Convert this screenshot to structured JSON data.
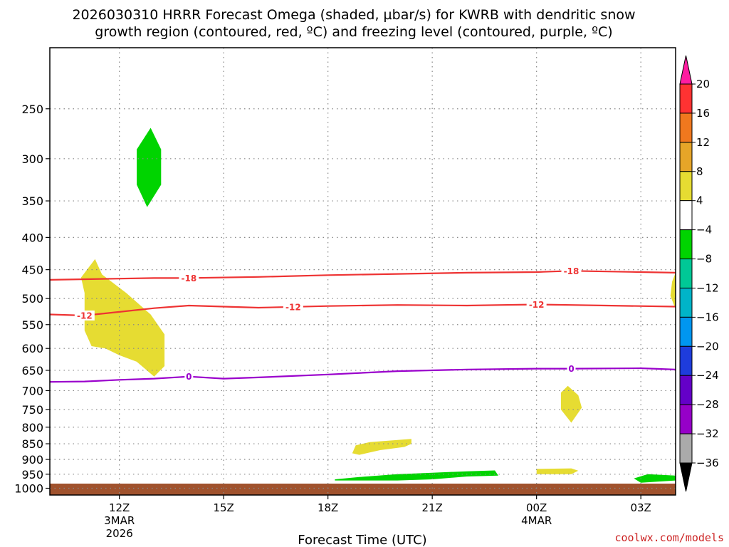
{
  "title": {
    "line1": "2026030310 HRRR Forecast Omega (shaded, µbar/s) for KWRB with dendritic snow",
    "line2": "growth region (contoured, red, ºC) and freezing level (contoured, purple, ºC)"
  },
  "credit": "coolwx.com/models",
  "colors": {
    "ascent_weak": "#00d400",
    "descent_weak": "#e6dc32",
    "ground": "#a0522d",
    "dgz_contour": "#ee3333",
    "freezing_contour": "#9a00cc",
    "grid": "#888888"
  },
  "chart_data": {
    "type": "time-height cross section",
    "xlabel": "Forecast Time (UTC)",
    "ylabel": "",
    "x_unit": "hours since 2026-03-03 08Z",
    "x_ticks": [
      {
        "x": 4,
        "label": "12Z",
        "sub": [
          "3MAR",
          "2026"
        ]
      },
      {
        "x": 7,
        "label": "15Z",
        "sub": []
      },
      {
        "x": 10,
        "label": "18Z",
        "sub": []
      },
      {
        "x": 13,
        "label": "21Z",
        "sub": []
      },
      {
        "x": 16,
        "label": "00Z",
        "sub": [
          "4MAR"
        ]
      },
      {
        "x": 19,
        "label": "03Z",
        "sub": []
      }
    ],
    "xlim": [
      2,
      20
    ],
    "y_unit": "hPa",
    "y_ticks": [
      250,
      300,
      350,
      400,
      450,
      500,
      550,
      600,
      650,
      700,
      750,
      800,
      850,
      900,
      950,
      1000
    ],
    "ylim": [
      200,
      1025
    ],
    "grid": true,
    "colorbar": {
      "labels": [
        20,
        16,
        12,
        8,
        4,
        -4,
        -8,
        -12,
        -16,
        -20,
        -24,
        -28,
        -32,
        -36
      ],
      "colors": [
        "#ff1ca0",
        "#ff3232",
        "#f0781e",
        "#e6a528",
        "#e6dc32",
        "#ffffff",
        "#00d400",
        "#00c896",
        "#00b4c8",
        "#0096f0",
        "#1e3cdc",
        "#6400c8",
        "#9600c8",
        "#aaaaaa",
        "#000000"
      ]
    },
    "contours": [
      {
        "name": "dgz_-18",
        "level": -18,
        "label": "-18",
        "color": "red",
        "points": [
          [
            2,
            467
          ],
          [
            4,
            465
          ],
          [
            5,
            464
          ],
          [
            6,
            464
          ],
          [
            8,
            462
          ],
          [
            10,
            459
          ],
          [
            12,
            457
          ],
          [
            14,
            455
          ],
          [
            16,
            454
          ],
          [
            17,
            452
          ],
          [
            19,
            454
          ],
          [
            20,
            455
          ]
        ],
        "label_x": [
          6,
          17
        ]
      },
      {
        "name": "dgz_-12",
        "level": -12,
        "label": "-12",
        "color": "red",
        "points": [
          [
            2,
            530
          ],
          [
            3,
            532
          ],
          [
            4,
            525
          ],
          [
            5,
            518
          ],
          [
            6,
            513
          ],
          [
            7,
            515
          ],
          [
            8,
            517
          ],
          [
            10,
            514
          ],
          [
            12,
            512
          ],
          [
            14,
            513
          ],
          [
            15,
            512
          ],
          [
            16,
            511
          ],
          [
            17,
            512
          ],
          [
            18,
            513
          ],
          [
            20,
            515
          ]
        ],
        "label_x": [
          3,
          9,
          16
        ]
      },
      {
        "name": "freezing_0",
        "level": 0,
        "label": "0",
        "color": "purple",
        "points": [
          [
            2,
            678
          ],
          [
            3,
            677
          ],
          [
            4,
            673
          ],
          [
            5,
            670
          ],
          [
            6,
            665
          ],
          [
            7,
            670
          ],
          [
            8,
            667
          ],
          [
            10,
            660
          ],
          [
            12,
            652
          ],
          [
            14,
            648
          ],
          [
            16,
            646
          ],
          [
            17,
            646
          ],
          [
            19,
            645
          ],
          [
            20,
            648
          ]
        ],
        "label_x": [
          6,
          17
        ]
      }
    ],
    "shaded_regions": [
      {
        "name": "ascent_upper",
        "value": "-8 to -4",
        "color_key": "ascent_weak",
        "polygon": [
          [
            4.5,
            290
          ],
          [
            4.9,
            268
          ],
          [
            5.2,
            290
          ],
          [
            5.2,
            330
          ],
          [
            4.8,
            358
          ],
          [
            4.5,
            330
          ]
        ]
      },
      {
        "name": "descent_midlevel",
        "value": "4 to 8",
        "color_key": "descent_weak",
        "polygon": [
          [
            2.9,
            463
          ],
          [
            3.0,
            490
          ],
          [
            3.0,
            562
          ],
          [
            3.2,
            595
          ],
          [
            3.6,
            600
          ],
          [
            4.0,
            615
          ],
          [
            4.5,
            630
          ],
          [
            5.0,
            665
          ],
          [
            5.3,
            640
          ],
          [
            5.3,
            570
          ],
          [
            4.9,
            530
          ],
          [
            4.2,
            490
          ],
          [
            3.5,
            458
          ],
          [
            3.3,
            433
          ]
        ]
      },
      {
        "name": "descent_right_edge",
        "value": "4 to 8",
        "color_key": "descent_weak",
        "polygon": [
          [
            19.9,
            470
          ],
          [
            20,
            455
          ],
          [
            20,
            520
          ],
          [
            19.85,
            495
          ]
        ]
      },
      {
        "name": "descent_near_00z",
        "value": "4 to 8",
        "color_key": "descent_weak",
        "polygon": [
          [
            16.7,
            705
          ],
          [
            16.9,
            688
          ],
          [
            17.2,
            712
          ],
          [
            17.3,
            745
          ],
          [
            17.0,
            787
          ],
          [
            16.7,
            750
          ]
        ]
      },
      {
        "name": "descent_low_19z",
        "value": "4 to 8",
        "color_key": "descent_weak",
        "polygon": [
          [
            10.7,
            880
          ],
          [
            10.8,
            855
          ],
          [
            11.2,
            845
          ],
          [
            11.8,
            840
          ],
          [
            12.4,
            835
          ],
          [
            12.4,
            850
          ],
          [
            12.2,
            860
          ],
          [
            11.5,
            870
          ],
          [
            10.9,
            885
          ]
        ]
      },
      {
        "name": "descent_low_01z",
        "value": "4 to 8",
        "color_key": "descent_weak",
        "polygon": [
          [
            16.0,
            932
          ],
          [
            17.0,
            930
          ],
          [
            17.2,
            938
          ],
          [
            17.0,
            950
          ],
          [
            16.0,
            950
          ]
        ]
      },
      {
        "name": "ascent_low_main",
        "value": "-8 to -4",
        "color_key": "ascent_weak",
        "polygon": [
          [
            10.2,
            968
          ],
          [
            10.9,
            960
          ],
          [
            12.0,
            950
          ],
          [
            13.0,
            945
          ],
          [
            14.0,
            940
          ],
          [
            14.8,
            937
          ],
          [
            14.9,
            955
          ],
          [
            14.0,
            958
          ],
          [
            13.0,
            968
          ],
          [
            12.0,
            972
          ],
          [
            11.0,
            972
          ],
          [
            10.2,
            972
          ]
        ]
      },
      {
        "name": "ascent_low_01z_area",
        "value": "-8 to -4",
        "color_key": "ascent_weak",
        "polygon": [
          [
            18.8,
            965
          ],
          [
            19.2,
            950
          ],
          [
            20,
            955
          ],
          [
            20,
            972
          ],
          [
            19.0,
            980
          ]
        ]
      }
    ]
  }
}
